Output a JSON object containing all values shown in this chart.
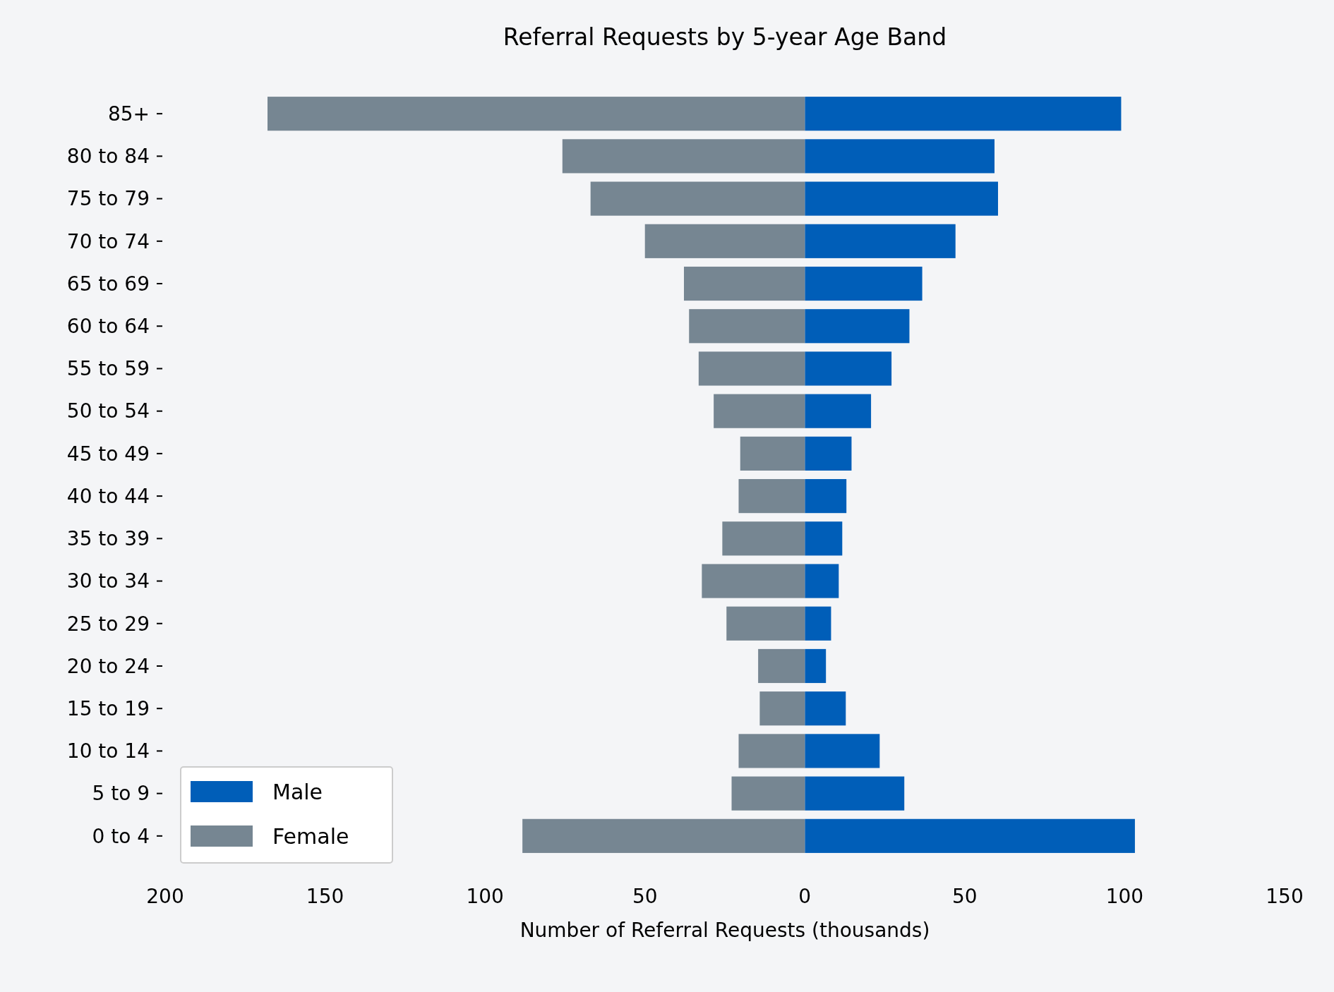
{
  "chart_data": {
    "type": "bar",
    "orientation": "horizontal",
    "stacked": true,
    "title": "Referral Requests by 5-year Age Band",
    "xlabel": "Number of Referral Requests (thousands)",
    "categories": [
      "85+",
      "80 to 84",
      "75 to 79",
      "70 to 74",
      "65 to 69",
      "60 to 64",
      "55 to 59",
      "50 to 54",
      "45 to 49",
      "40 to 44",
      "35 to 39",
      "30 to 34",
      "25 to 29",
      "20 to 24",
      "15 to 19",
      "10 to 14",
      "5 to 9",
      "0 to 4"
    ],
    "series": [
      {
        "name": "Male",
        "color": "#005eb8",
        "values": [
          98.9,
          59.3,
          60.4,
          47.1,
          36.7,
          32.7,
          27.1,
          20.7,
          14.6,
          13,
          11.7,
          10.6,
          8.2,
          6.6,
          12.8,
          23.4,
          31.1,
          103.2
        ]
      },
      {
        "name": "Female",
        "color": "#768692",
        "values": [
          -168,
          -75.8,
          -67,
          -50,
          -37.8,
          -36.2,
          -33.2,
          -28.5,
          -20.2,
          -20.7,
          -25.8,
          -32.2,
          -24.5,
          -14.6,
          -14.1,
          -20.7,
          -22.9,
          -88.3
        ]
      }
    ],
    "xlim": [
      -200,
      150
    ],
    "xticks": [
      {
        "value": -200,
        "label": "200"
      },
      {
        "value": -150,
        "label": "150"
      },
      {
        "value": -100,
        "label": "100"
      },
      {
        "value": -50,
        "label": "50"
      },
      0,
      50,
      100,
      150
    ],
    "grid": false,
    "legend": "bottom left"
  }
}
